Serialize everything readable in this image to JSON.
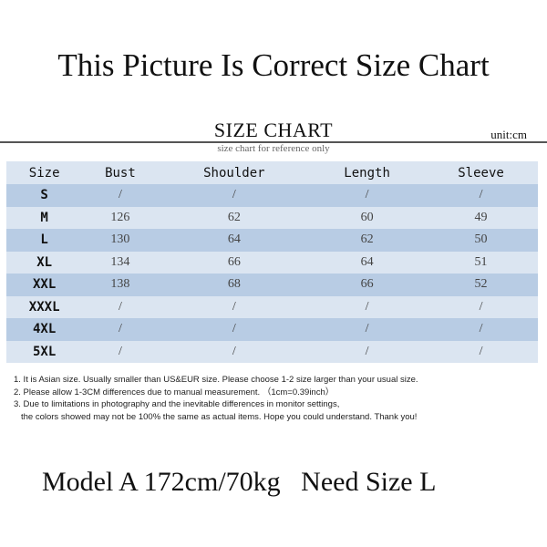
{
  "title": "This Picture Is Correct Size Chart",
  "size_chart": {
    "title": "SIZE CHART",
    "unit": "unit:cm",
    "subtitle": "size chart for reference only",
    "headers": [
      "Size",
      "Bust",
      "Shoulder",
      "Length",
      "Sleeve"
    ],
    "rows": [
      [
        "S",
        "/",
        "/",
        "/",
        "/"
      ],
      [
        "M",
        "126",
        "62",
        "60",
        "49"
      ],
      [
        "L",
        "130",
        "64",
        "62",
        "50"
      ],
      [
        "XL",
        "134",
        "66",
        "64",
        "51"
      ],
      [
        "XXL",
        "138",
        "68",
        "66",
        "52"
      ],
      [
        "XXXL",
        "/",
        "/",
        "/",
        "/"
      ],
      [
        "4XL",
        "/",
        "/",
        "/",
        "/"
      ],
      [
        "5XL",
        "/",
        "/",
        "/",
        "/"
      ]
    ],
    "colors": {
      "row_dark": "#b8cce4",
      "row_light": "#dbe5f1"
    }
  },
  "notes": [
    "1. It is Asian size.  Usually smaller than US&EUR size. Please choose 1-2 size larger than your usual size.",
    "2. Please allow 1-3CM differences due to manual measurement.  （1cm=0.39inch）",
    "3. Due to limitations in photography and the inevitable differences in monitor settings,",
    "the colors showed may not be 100% the same as actual items. Hope you could understand. Thank you!"
  ],
  "model_note": "Model A 172cm/70kg   Need Size L"
}
